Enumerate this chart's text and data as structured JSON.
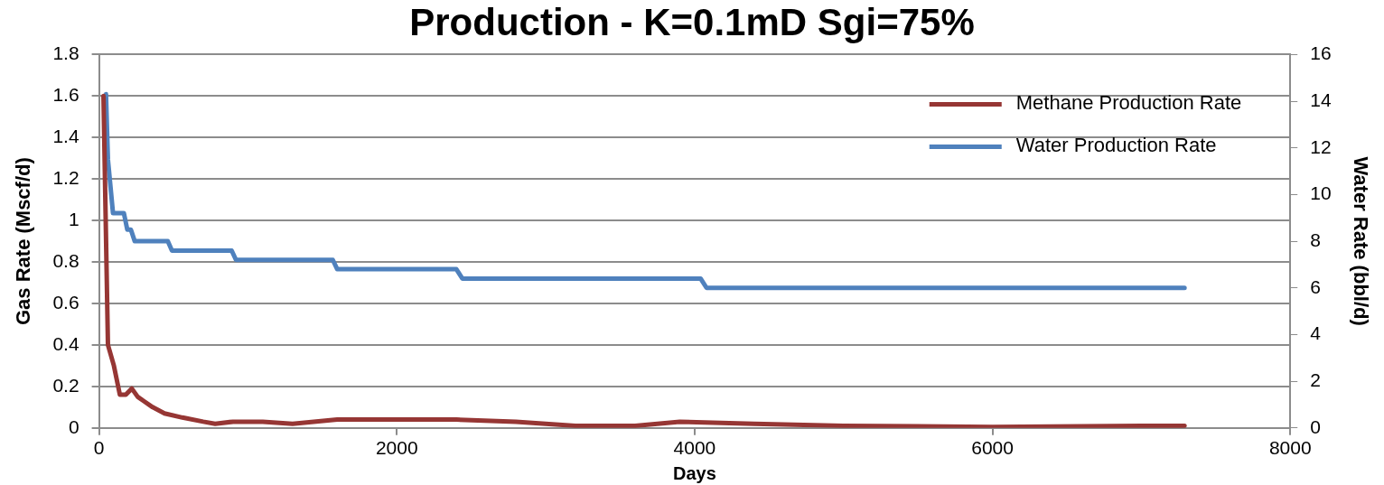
{
  "chart_data": {
    "type": "line",
    "title": "Production - K=0.1mD Sgi=75%",
    "xlabel": "Days",
    "ylabel": "Gas Rate (Mscf/d)",
    "y2label": "Water Rate (bbl/d)",
    "xlim": [
      0,
      8000
    ],
    "xticks": [
      0,
      2000,
      4000,
      6000,
      8000
    ],
    "ylim": [
      0,
      1.8
    ],
    "yticks": [
      0,
      0.2,
      0.4,
      0.6,
      0.8,
      1,
      1.2,
      1.4,
      1.6,
      1.8
    ],
    "y2lim": [
      0,
      16
    ],
    "y2ticks": [
      0,
      2,
      4,
      6,
      8,
      10,
      12,
      14,
      16
    ],
    "grid": "y",
    "legend": "top right",
    "marker": "none",
    "line_style": "solid",
    "series": [
      {
        "name": "Methane Production Rate",
        "color": "#963634",
        "x": [
          30,
          45,
          60,
          100,
          140,
          180,
          220,
          260,
          300,
          360,
          440,
          560,
          700,
          780,
          900,
          1100,
          1300,
          1600,
          2000,
          2400,
          2800,
          3200,
          3600,
          3900,
          4400,
          5000,
          6000,
          7000,
          7290
        ],
        "values": [
          1.6,
          1.0,
          0.4,
          0.3,
          0.16,
          0.16,
          0.19,
          0.15,
          0.13,
          0.1,
          0.07,
          0.05,
          0.03,
          0.02,
          0.03,
          0.03,
          0.02,
          0.04,
          0.04,
          0.04,
          0.03,
          0.01,
          0.01,
          0.03,
          0.02,
          0.01,
          0.005,
          0.01,
          0.01
        ]
      },
      {
        "name": "Water Production Rate",
        "color": "#4f81bd",
        "axis": "y2",
        "x": [
          47,
          60,
          94,
          167,
          190,
          214,
          240,
          281,
          462,
          490,
          891,
          920,
          1570,
          1600,
          2400,
          2440,
          4040,
          4080,
          7290
        ],
        "values": [
          14.3,
          11.5,
          9.2,
          9.2,
          8.5,
          8.5,
          8.0,
          8.0,
          8.0,
          7.6,
          7.6,
          7.2,
          7.2,
          6.8,
          6.8,
          6.4,
          6.4,
          6.0,
          6.0
        ]
      }
    ]
  }
}
